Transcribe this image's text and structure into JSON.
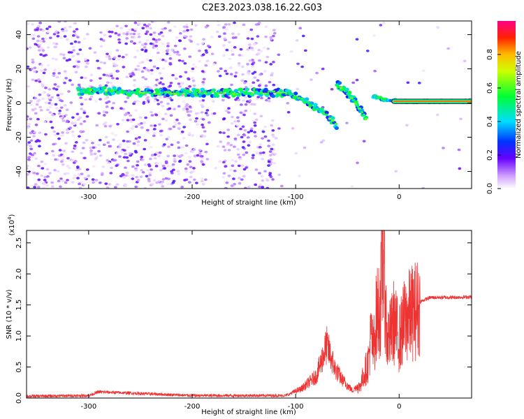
{
  "title": "C2E3.2023.038.16.22.G03",
  "chart_data": [
    {
      "type": "heatmap",
      "xlabel": "Height of straight line (km)",
      "ylabel": "Frequency (Hz)",
      "xlim": [
        -360,
        70
      ],
      "ylim": [
        -50,
        48
      ],
      "xticks": [
        -300,
        -200,
        -100,
        0
      ],
      "xtick_labels": [
        "-300",
        "-200",
        "-100",
        "0"
      ],
      "yticks": [
        -40,
        -20,
        0,
        20,
        40
      ],
      "ytick_labels": [
        "-40",
        "-20",
        "0",
        "20",
        "40"
      ],
      "colorbar": {
        "label": "Normalized spectral amplitude",
        "range": [
          0,
          1
        ],
        "ticks": [
          0,
          0.2,
          0.4,
          0.6,
          0.8
        ],
        "tick_labels": [
          "0.0",
          "0.2",
          "0.4",
          "0.6",
          "0.8"
        ]
      },
      "main_trace": [
        {
          "x": -310,
          "y": 7
        },
        {
          "x": -280,
          "y": 7
        },
        {
          "x": -240,
          "y": 6
        },
        {
          "x": -200,
          "y": 6
        },
        {
          "x": -170,
          "y": 6
        },
        {
          "x": -140,
          "y": 6
        },
        {
          "x": -120,
          "y": 6
        },
        {
          "x": -105,
          "y": 6
        },
        {
          "x": -95,
          "y": 3
        },
        {
          "x": -85,
          "y": -1
        },
        {
          "x": -75,
          "y": -5
        },
        {
          "x": -65,
          "y": -10
        },
        {
          "x": -60,
          "y": -13
        }
      ],
      "secondary_trace": [
        {
          "x": -60,
          "y": 11
        },
        {
          "x": -50,
          "y": 6
        },
        {
          "x": -42,
          "y": 0
        },
        {
          "x": -35,
          "y": -6
        },
        {
          "x": -32,
          "y": -10
        }
      ],
      "tail_trace": [
        {
          "x": -25,
          "y": 4
        },
        {
          "x": -15,
          "y": 2
        },
        {
          "x": 0,
          "y": 1
        },
        {
          "x": 30,
          "y": 1
        },
        {
          "x": 70,
          "y": 1
        }
      ]
    },
    {
      "type": "line",
      "xlabel": "Height of straight line (km)",
      "ylabel": "SNR (10 * v/v)",
      "yexponent_label": "(x10",
      "yexponent_power": "4",
      "yexponent_close": ")",
      "xlim": [
        -360,
        70
      ],
      "ylim": [
        0,
        2.7
      ],
      "xticks": [
        -300,
        -200,
        -100,
        0
      ],
      "xtick_labels": [
        "-300",
        "-200",
        "-100",
        "0"
      ],
      "yticks": [
        0,
        0.5,
        1,
        1.5,
        2,
        2.5
      ],
      "ytick_labels": [
        "0.0",
        "0.5",
        "1.0",
        "1.5",
        "2.0",
        "2.5"
      ],
      "color": "#ee3333",
      "series": [
        {
          "points": [
            {
              "x": -360,
              "y": 0.03
            },
            {
              "x": -300,
              "y": 0.04
            },
            {
              "x": -290,
              "y": 0.1
            },
            {
              "x": -200,
              "y": 0.04
            },
            {
              "x": -110,
              "y": 0.04
            },
            {
              "x": -95,
              "y": 0.12
            },
            {
              "x": -80,
              "y": 0.3
            },
            {
              "x": -70,
              "y": 0.72
            },
            {
              "x": -62,
              "y": 0.4
            },
            {
              "x": -55,
              "y": 0.25
            },
            {
              "x": -45,
              "y": 0.1
            },
            {
              "x": -38,
              "y": 0.2
            },
            {
              "x": -30,
              "y": 0.6
            },
            {
              "x": -27,
              "y": 1.1
            },
            {
              "x": -25,
              "y": 0.8
            },
            {
              "x": -22,
              "y": 1.4
            },
            {
              "x": -18,
              "y": 1.6
            },
            {
              "x": -15,
              "y": 2.7
            },
            {
              "x": -12,
              "y": 1.0
            },
            {
              "x": -8,
              "y": 1.1
            },
            {
              "x": -5,
              "y": 1.3
            },
            {
              "x": 0,
              "y": 1.0
            },
            {
              "x": 5,
              "y": 1.3
            },
            {
              "x": 12,
              "y": 1.45
            },
            {
              "x": 20,
              "y": 1.55
            },
            {
              "x": 30,
              "y": 1.62
            },
            {
              "x": 40,
              "y": 1.62
            },
            {
              "x": 50,
              "y": 1.62
            },
            {
              "x": 70,
              "y": 1.63
            }
          ]
        }
      ]
    }
  ]
}
